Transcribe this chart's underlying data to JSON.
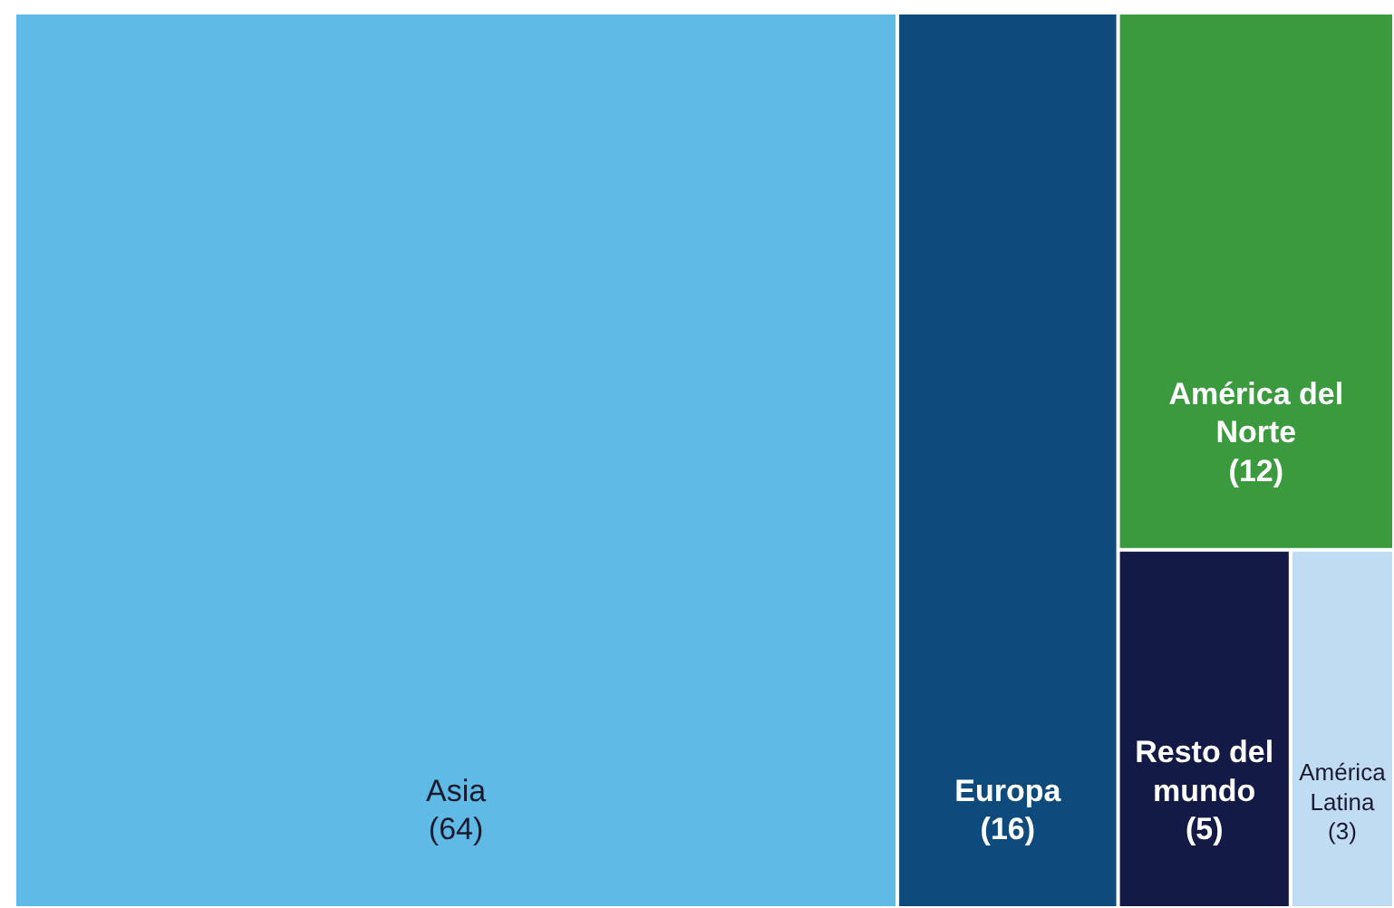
{
  "chart_data": {
    "type": "other",
    "categories": [
      "Asia",
      "Europa",
      "América del Norte",
      "Resto del mundo",
      "América Latina"
    ],
    "values": [
      64,
      16,
      12,
      5,
      3
    ],
    "value_labels": [
      "(64)",
      "(16)",
      "(12)",
      "(5)",
      "(3)"
    ],
    "colors": [
      "#5fbae6",
      "#0f4a7c",
      "#3c9a3e",
      "#121a45",
      "#bfdcf2"
    ]
  }
}
